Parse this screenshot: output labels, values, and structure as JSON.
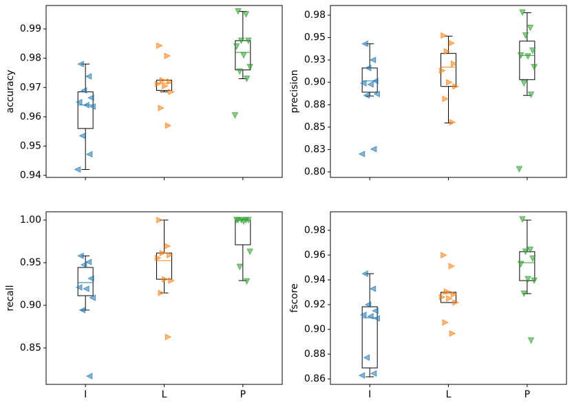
{
  "chart_data": [
    {
      "type": "box",
      "ylabel": "accuracy",
      "categories": [
        null,
        null,
        null
      ],
      "colors": [
        "#1f77b4",
        "#ff7f0e",
        "#2ca02c"
      ],
      "markers": [
        "left",
        "right",
        "down"
      ],
      "ylim": [
        0.9393,
        0.998
      ],
      "yticks": [
        0.94,
        0.95,
        0.96,
        0.97,
        0.98,
        0.99
      ],
      "boxes": [
        {
          "whislo": 0.942,
          "q1": 0.956,
          "med": 0.964,
          "q3": 0.9685,
          "whishi": 0.978
        },
        {
          "whislo": 0.9685,
          "q1": 0.969,
          "med": 0.9715,
          "q3": 0.9725,
          "whishi": 0.9725
        },
        {
          "whislo": 0.973,
          "q1": 0.976,
          "med": 0.982,
          "q3": 0.986,
          "whishi": 0.996
        }
      ],
      "points": [
        [
          0.978,
          0.9738,
          0.969,
          0.9665,
          0.965,
          0.964,
          0.9635,
          0.9535,
          0.9472,
          0.942
        ],
        [
          0.9843,
          0.9808,
          0.9725,
          0.972,
          0.9712,
          0.9705,
          0.9685,
          0.963,
          0.957
        ],
        [
          0.996,
          0.995,
          0.986,
          0.986,
          0.984,
          0.981,
          0.977,
          0.9755,
          0.973,
          0.9605
        ]
      ]
    },
    {
      "type": "box",
      "ylabel": "precision",
      "categories": [
        null,
        null,
        null
      ],
      "colors": [
        "#1f77b4",
        "#ff7f0e",
        "#2ca02c"
      ],
      "markers": [
        "left",
        "right",
        "down"
      ],
      "ylim": [
        0.7938,
        0.9858
      ],
      "yticks": [
        {
          "value": 0.8,
          "label": "0.80"
        },
        {
          "value": 0.825,
          "label": "0.83"
        },
        0.85,
        {
          "value": 0.875,
          "label": "0.88"
        },
        {
          "value": 0.9,
          "label": "0.90"
        },
        {
          "value": 0.925,
          "label": "0.93"
        },
        0.95,
        {
          "value": 0.975,
          "label": "0.98"
        }
      ],
      "boxes": [
        {
          "whislo": 0.8846,
          "q1": 0.889,
          "med": 0.9015,
          "q3": 0.916,
          "whishi": 0.943
        },
        {
          "whislo": 0.8546,
          "q1": 0.8954,
          "med": 0.917,
          "q3": 0.9323,
          "whishi": 0.9515
        },
        {
          "whislo": 0.8854,
          "q1": 0.903,
          "med": 0.93,
          "q3": 0.946,
          "whishi": 0.9777
        }
      ],
      "points": [
        [
          0.943,
          0.925,
          0.916,
          0.9015,
          0.899,
          0.8977,
          0.887,
          0.8854,
          0.8254,
          0.82
        ],
        [
          0.9523,
          0.9438,
          0.9346,
          0.9208,
          0.913,
          0.9,
          0.8954,
          0.8815,
          0.8554
        ],
        [
          0.978,
          0.9608,
          0.9523,
          0.9354,
          0.93,
          0.929,
          0.917,
          0.899,
          0.8862,
          0.803
        ]
      ]
    },
    {
      "type": "box",
      "ylabel": "recall",
      "categories": [
        "I",
        "L",
        "P"
      ],
      "colors": [
        "#1f77b4",
        "#ff7f0e",
        "#2ca02c"
      ],
      "markers": [
        "left",
        "right",
        "down"
      ],
      "ylim": [
        0.8073,
        1.0097
      ],
      "yticks": [
        0.85,
        {
          "value": 0.9,
          "label": "0.90"
        },
        0.95,
        {
          "value": 1.0,
          "label": "1.00"
        }
      ],
      "boxes": [
        {
          "whislo": 0.8944,
          "q1": 0.9113,
          "med": 0.9266,
          "q3": 0.9444,
          "whishi": 0.958
        },
        {
          "whislo": 0.9145,
          "q1": 0.9306,
          "med": 0.9524,
          "q3": 0.9613,
          "whishi": 1.0
        },
        {
          "whislo": 0.929,
          "q1": 0.971,
          "med": 1.0,
          "q3": 1.0,
          "whishi": 1.0
        }
      ],
      "points": [
        [
          0.958,
          0.9508,
          0.9476,
          0.9315,
          0.921,
          0.9194,
          0.9089,
          0.8944,
          0.817
        ],
        [
          1.0,
          0.9694,
          0.9613,
          0.9589,
          0.9556,
          0.9306,
          0.929,
          0.9145,
          0.8629
        ],
        [
          1.0,
          1.0,
          1.0,
          1.0,
          1.0,
          0.9984,
          0.9629,
          0.9452,
          0.9282
        ]
      ]
    },
    {
      "type": "box",
      "ylabel": "fscore",
      "categories": [
        "I",
        "L",
        "P"
      ],
      "colors": [
        "#1f77b4",
        "#ff7f0e",
        "#2ca02c"
      ],
      "markers": [
        "left",
        "right",
        "down"
      ],
      "ylim": [
        0.8556,
        0.995
      ],
      "yticks": [
        0.86,
        0.88,
        {
          "value": 0.9,
          "label": "0.90"
        },
        0.92,
        0.94,
        0.96,
        0.98
      ],
      "boxes": [
        {
          "whislo": 0.8617,
          "q1": 0.8689,
          "med": 0.9094,
          "q3": 0.9183,
          "whishi": 0.945
        },
        {
          "whislo": 0.9217,
          "q1": 0.9217,
          "med": 0.9289,
          "q3": 0.93,
          "whishi": 0.93
        },
        {
          "whislo": 0.9289,
          "q1": 0.9394,
          "med": 0.9539,
          "q3": 0.9628,
          "whishi": 0.9883
        }
      ],
      "points": [
        [
          0.945,
          0.9328,
          0.92,
          0.915,
          0.9117,
          0.9106,
          0.9089,
          0.8772,
          0.8644,
          0.8628
        ],
        [
          0.96,
          0.9511,
          0.9306,
          0.9283,
          0.9261,
          0.925,
          0.9217,
          0.9056,
          0.8967
        ],
        [
          0.9889,
          0.9644,
          0.9628,
          0.9572,
          0.9528,
          0.9406,
          0.9394,
          0.9289,
          0.8911
        ]
      ]
    }
  ]
}
